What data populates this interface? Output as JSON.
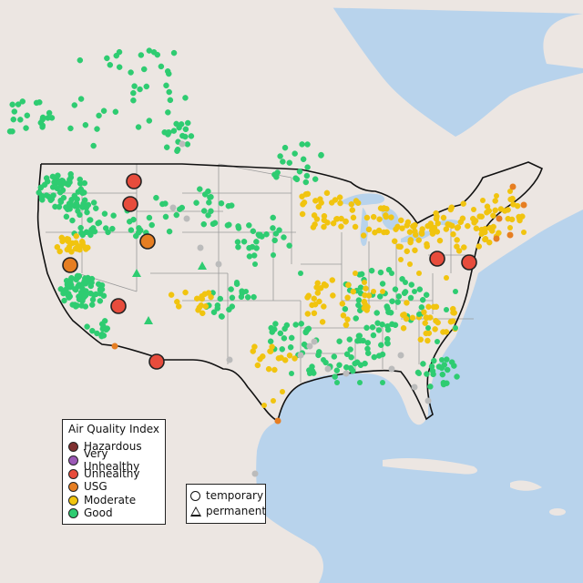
{
  "colors": {
    "water": "#b8d3ec",
    "land": "#ece6e2",
    "border": "#111111",
    "states": "#9a9a9a",
    "Hazardous": "#7e2f2f",
    "Very Unhealthy": "#9b59b6",
    "Unhealthy": "#e74c3c",
    "USG": "#e67e22",
    "Moderate": "#f1c40f",
    "Good": "#2ecc71",
    "Unknown": "#bbbbbb"
  },
  "legend_aqi": {
    "title": "Air Quality Index",
    "items": [
      {
        "label": "Hazardous",
        "color": "#7e2f2f"
      },
      {
        "label": "Very Unhealthy",
        "color": "#9b59b6"
      },
      {
        "label": "Unhealthy",
        "color": "#e74c3c"
      },
      {
        "label": "USG",
        "color": "#e67e22"
      },
      {
        "label": "Moderate",
        "color": "#f1c40f"
      },
      {
        "label": "Good",
        "color": "#2ecc71"
      }
    ]
  },
  "legend_type": {
    "items": [
      {
        "label": "temporary",
        "shape": "circle-icon"
      },
      {
        "label": "permanent",
        "shape": "triangle-icon"
      }
    ]
  }
}
